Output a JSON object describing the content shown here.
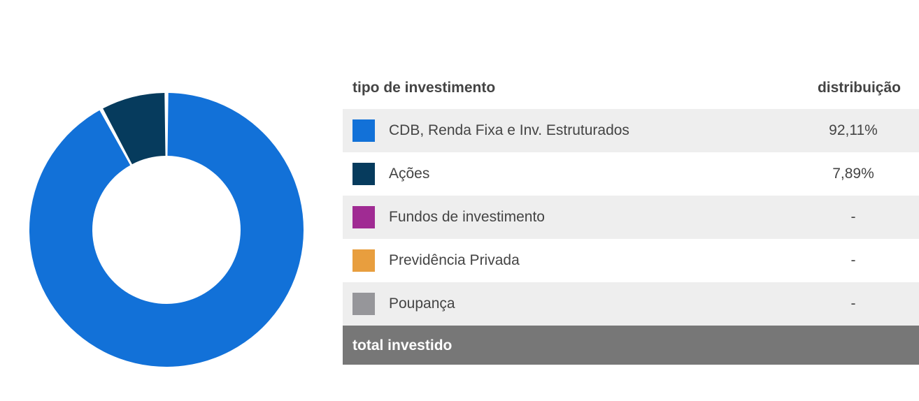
{
  "table": {
    "header_type": "tipo de investimento",
    "header_distribution": "distribuição",
    "rows": [
      {
        "label": "CDB, Renda Fixa e Inv. Estruturados",
        "value": "92,11%",
        "color": "#1271d8"
      },
      {
        "label": "Ações",
        "value": "7,89%",
        "color": "#063b5d"
      },
      {
        "label": "Fundos de investimento",
        "value": "-",
        "color": "#a02b93"
      },
      {
        "label": "Previdência Privada",
        "value": "-",
        "color": "#e89e3e"
      },
      {
        "label": "Poupança",
        "value": "-",
        "color": "#96969a"
      }
    ],
    "total_label": "total investido"
  },
  "chart_data": {
    "type": "pie",
    "donut": true,
    "categories": [
      "CDB, Renda Fixa e Inv. Estruturados",
      "Ações",
      "Fundos de investimento",
      "Previdência Privada",
      "Poupança"
    ],
    "values": [
      92.11,
      7.89,
      0,
      0,
      0
    ],
    "colors": [
      "#1271d8",
      "#063b5d",
      "#a02b93",
      "#e89e3e",
      "#96969a"
    ],
    "start": "top",
    "direction": "clockwise"
  }
}
